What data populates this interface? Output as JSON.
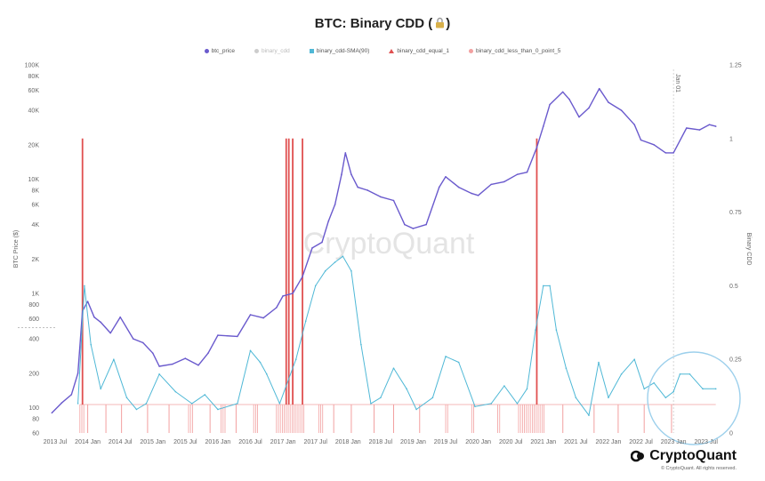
{
  "title": "BTC: Binary CDD (",
  "title_close": ")",
  "legend": [
    {
      "label": "btc_price",
      "color": "#6a5acd",
      "shape": "dot",
      "dim": false
    },
    {
      "label": "binary_cdd",
      "color": "#cccccc",
      "shape": "dot",
      "dim": true
    },
    {
      "label": "binary_cdd-SMA(90)",
      "color": "#4fb8d6",
      "shape": "square",
      "dim": false
    },
    {
      "label": "binary_cdd_equal_1",
      "color": "#e05050",
      "shape": "triangle",
      "dim": false
    },
    {
      "label": "binary_cdd_less_than_0_point_5",
      "color": "#f2a0a0",
      "shape": "dot",
      "dim": false
    }
  ],
  "watermark": "CryptoQuant",
  "footer": {
    "brand": "CryptoQuant",
    "copyright": "© CryptoQuant. All rights reserved."
  },
  "chart_data": {
    "type": "line",
    "title": "BTC: Binary CDD",
    "ylabel_left": "BTC Price ($)",
    "ylabel_right": "Binary CDD",
    "y_left_scale": "log",
    "y_left_range": [
      60,
      100000
    ],
    "y_left_ticks": [
      "100K",
      "80K",
      "60K",
      "40K",
      "20K",
      "10K",
      "8K",
      "6K",
      "4K",
      "2K",
      "1K",
      "800",
      "600",
      "400",
      "200",
      "100",
      "80",
      "60"
    ],
    "y_right_range": [
      0,
      1.25
    ],
    "y_right_ticks": [
      "1.25",
      "1",
      "0.75",
      "0.5",
      "0.25",
      "0"
    ],
    "x_ticks": [
      "2013 Jul",
      "2014 Jan",
      "2014 Jul",
      "2015 Jan",
      "2015 Jul",
      "2016 Jan",
      "2016 Jul",
      "2017 Jan",
      "2017 Jul",
      "2018 Jan",
      "2018 Jul",
      "2019 Jan",
      "2019 Jul",
      "2020 Jan",
      "2020 Jul",
      "2021 Jan",
      "2021 Jul",
      "2022 Jan",
      "2022 Jul",
      "2023 Jan",
      "2023 Jul"
    ],
    "annotation": {
      "label": "Jan 01",
      "x": 2023.0
    },
    "grid": false,
    "legend_position": "top",
    "series": [
      {
        "name": "btc_price",
        "color": "#6a5acd",
        "axis": "left",
        "x": [
          2013.45,
          2013.6,
          2013.75,
          2013.85,
          2013.92,
          2014.0,
          2014.1,
          2014.2,
          2014.35,
          2014.5,
          2014.7,
          2014.85,
          2015.0,
          2015.1,
          2015.3,
          2015.5,
          2015.7,
          2015.85,
          2016.0,
          2016.3,
          2016.5,
          2016.7,
          2016.9,
          2017.0,
          2017.15,
          2017.3,
          2017.45,
          2017.6,
          2017.7,
          2017.8,
          2017.9,
          2017.96,
          2018.05,
          2018.15,
          2018.3,
          2018.5,
          2018.7,
          2018.87,
          2019.0,
          2019.2,
          2019.4,
          2019.5,
          2019.7,
          2019.9,
          2020.0,
          2020.2,
          2020.4,
          2020.6,
          2020.75,
          2020.9,
          2021.0,
          2021.1,
          2021.3,
          2021.4,
          2021.55,
          2021.7,
          2021.86,
          2022.0,
          2022.2,
          2022.4,
          2022.5,
          2022.7,
          2022.88,
          2023.0,
          2023.2,
          2023.4,
          2023.55,
          2023.65
        ],
        "values": [
          90,
          110,
          130,
          200,
          700,
          850,
          620,
          560,
          450,
          620,
          400,
          370,
          300,
          230,
          240,
          270,
          235,
          300,
          430,
          420,
          650,
          610,
          750,
          950,
          1000,
          1400,
          2500,
          2800,
          4300,
          6000,
          11000,
          17000,
          11000,
          8500,
          8000,
          7000,
          6500,
          4000,
          3700,
          4000,
          8500,
          10500,
          8500,
          7500,
          7200,
          9000,
          9500,
          11000,
          11500,
          19000,
          29000,
          45000,
          58000,
          50000,
          35000,
          42000,
          62000,
          47000,
          40000,
          30000,
          22000,
          20000,
          17000,
          17000,
          28000,
          27000,
          30000,
          29000
        ]
      },
      {
        "name": "binary_cdd-SMA(90)",
        "color": "#4fb8d6",
        "axis": "right",
        "x": [
          2013.85,
          2013.95,
          2014.05,
          2014.2,
          2014.4,
          2014.6,
          2014.75,
          2014.9,
          2015.1,
          2015.35,
          2015.6,
          2015.8,
          2016.0,
          2016.3,
          2016.5,
          2016.65,
          2016.75,
          2016.95,
          2017.2,
          2017.35,
          2017.5,
          2017.65,
          2017.8,
          2017.92,
          2018.05,
          2018.2,
          2018.35,
          2018.5,
          2018.7,
          2018.9,
          2019.05,
          2019.3,
          2019.5,
          2019.7,
          2019.95,
          2020.2,
          2020.4,
          2020.6,
          2020.75,
          2020.88,
          2021.0,
          2021.1,
          2021.2,
          2021.35,
          2021.5,
          2021.7,
          2021.85,
          2022.0,
          2022.2,
          2022.4,
          2022.55,
          2022.7,
          2022.88,
          2023.0,
          2023.1,
          2023.25,
          2023.45,
          2023.65
        ],
        "values": [
          0.1,
          0.5,
          0.3,
          0.15,
          0.25,
          0.12,
          0.08,
          0.1,
          0.2,
          0.14,
          0.1,
          0.13,
          0.08,
          0.1,
          0.28,
          0.24,
          0.2,
          0.1,
          0.25,
          0.38,
          0.5,
          0.55,
          0.58,
          0.6,
          0.55,
          0.3,
          0.1,
          0.12,
          0.22,
          0.15,
          0.08,
          0.12,
          0.26,
          0.24,
          0.09,
          0.1,
          0.16,
          0.1,
          0.15,
          0.35,
          0.5,
          0.5,
          0.35,
          0.22,
          0.12,
          0.06,
          0.24,
          0.12,
          0.2,
          0.25,
          0.15,
          0.17,
          0.12,
          0.14,
          0.2,
          0.2,
          0.15,
          0.15
        ]
      }
    ],
    "binary_cdd_equal_1_events": [
      2013.92,
      2017.05,
      2017.09,
      2017.15,
      2017.3,
      2020.9
    ],
    "binary_cdd_less_than_0_point_5_bands": [
      [
        2013.88,
        2013.96
      ],
      [
        2014.0,
        2014.03
      ],
      [
        2014.28,
        2014.31
      ],
      [
        2014.52,
        2014.55
      ],
      [
        2014.92,
        2014.95
      ],
      [
        2015.25,
        2015.28
      ],
      [
        2015.55,
        2015.62
      ],
      [
        2015.88,
        2015.91
      ],
      [
        2016.05,
        2016.12
      ],
      [
        2016.28,
        2016.3
      ],
      [
        2016.55,
        2016.62
      ],
      [
        2016.9,
        2017.35
      ],
      [
        2017.55,
        2017.63
      ],
      [
        2017.78,
        2017.82
      ],
      [
        2018.05,
        2018.08
      ],
      [
        2018.4,
        2018.42
      ],
      [
        2018.7,
        2018.73
      ],
      [
        2019.1,
        2019.12
      ],
      [
        2019.5,
        2019.55
      ],
      [
        2019.9,
        2019.95
      ],
      [
        2020.3,
        2020.35
      ],
      [
        2020.62,
        2021.02
      ],
      [
        2021.3,
        2021.32
      ],
      [
        2021.78,
        2021.8
      ],
      [
        2022.15,
        2022.18
      ],
      [
        2022.55,
        2022.58
      ],
      [
        2022.97,
        2023.0
      ]
    ]
  }
}
